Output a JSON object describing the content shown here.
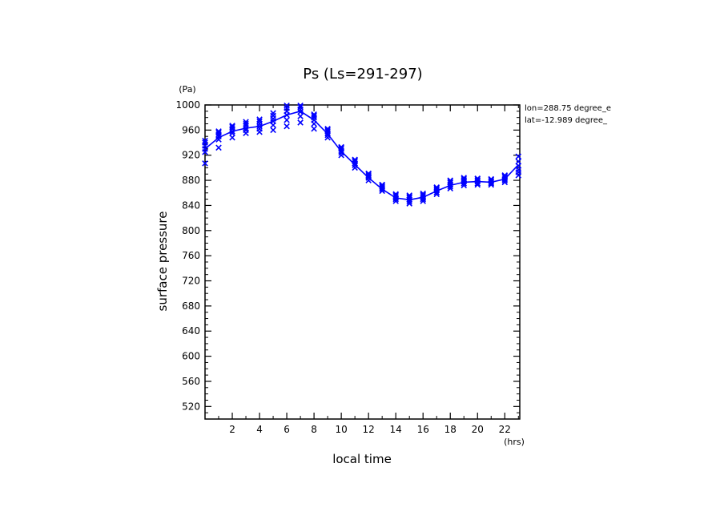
{
  "chart_data": {
    "type": "line",
    "title": "Ps (Ls=291-297)",
    "xlabel": "local time",
    "ylabel": "surface pressure",
    "x_unit": "(hrs)",
    "y_unit": "(Pa)",
    "xlim": [
      0,
      23.1
    ],
    "ylim": [
      500,
      1000
    ],
    "x_ticks": [
      2,
      4,
      6,
      8,
      10,
      12,
      14,
      16,
      18,
      20,
      22
    ],
    "y_ticks": [
      520,
      560,
      600,
      640,
      680,
      720,
      760,
      800,
      840,
      880,
      920,
      960,
      1000
    ],
    "grid": false,
    "annotations": [
      "lon=288.75 degree_e",
      "lat=-12.989 degree_"
    ],
    "series": [
      {
        "style": "line",
        "color": "#0000ff",
        "x": [
          0,
          1,
          2,
          3,
          4,
          5,
          6,
          7,
          8,
          9,
          10,
          11,
          12,
          13,
          14,
          15,
          16,
          17,
          18,
          19,
          20,
          21,
          22,
          23
        ],
        "y": [
          930,
          948,
          958,
          963,
          966,
          974,
          984,
          990,
          976,
          954,
          926,
          905,
          884,
          866,
          852,
          849,
          853,
          863,
          872,
          877,
          878,
          877,
          882,
          905
        ]
      },
      {
        "style": "markers",
        "marker": "x",
        "color": "#0000ff",
        "x": [
          0,
          0,
          0,
          0,
          0,
          0,
          1,
          1,
          1,
          1,
          1,
          1,
          2,
          2,
          2,
          2,
          2,
          2,
          3,
          3,
          3,
          3,
          3,
          3,
          4,
          4,
          4,
          4,
          4,
          4,
          5,
          5,
          5,
          5,
          5,
          5,
          6,
          6,
          6,
          6,
          6,
          6,
          7,
          7,
          7,
          7,
          7,
          7,
          8,
          8,
          8,
          8,
          8,
          8,
          9,
          9,
          9,
          9,
          9,
          9,
          10,
          10,
          10,
          10,
          10,
          10,
          11,
          11,
          11,
          11,
          11,
          11,
          12,
          12,
          12,
          12,
          12,
          12,
          13,
          13,
          13,
          13,
          13,
          13,
          14,
          14,
          14,
          14,
          14,
          14,
          15,
          15,
          15,
          15,
          15,
          15,
          16,
          16,
          16,
          16,
          16,
          16,
          17,
          17,
          17,
          17,
          17,
          17,
          18,
          18,
          18,
          18,
          18,
          18,
          19,
          19,
          19,
          19,
          19,
          19,
          20,
          20,
          20,
          20,
          20,
          20,
          21,
          21,
          21,
          21,
          21,
          21,
          22,
          22,
          22,
          22,
          22,
          22,
          23,
          23,
          23,
          23,
          23,
          23
        ],
        "y": [
          907,
          925,
          930,
          935,
          940,
          943,
          932,
          945,
          950,
          953,
          956,
          958,
          948,
          955,
          958,
          962,
          965,
          967,
          955,
          960,
          963,
          967,
          970,
          973,
          957,
          962,
          966,
          970,
          974,
          977,
          960,
          968,
          974,
          978,
          983,
          987,
          966,
          976,
          984,
          990,
          995,
          999,
          972,
          982,
          989,
          993,
          997,
          999,
          962,
          970,
          976,
          980,
          983,
          985,
          948,
          952,
          955,
          958,
          960,
          962,
          920,
          924,
          927,
          930,
          932,
          933,
          900,
          904,
          907,
          910,
          912,
          913,
          880,
          884,
          886,
          888,
          890,
          891,
          863,
          866,
          868,
          870,
          872,
          873,
          847,
          850,
          852,
          855,
          857,
          858,
          843,
          846,
          849,
          852,
          854,
          856,
          847,
          850,
          852,
          855,
          857,
          859,
          858,
          861,
          864,
          866,
          868,
          869,
          867,
          870,
          873,
          876,
          878,
          880,
          872,
          875,
          878,
          880,
          882,
          884,
          873,
          875,
          878,
          880,
          882,
          883,
          873,
          875,
          877,
          879,
          881,
          882,
          877,
          880,
          882,
          885,
          887,
          888,
          888,
          893,
          897,
          903,
          910,
          918
        ]
      }
    ]
  }
}
